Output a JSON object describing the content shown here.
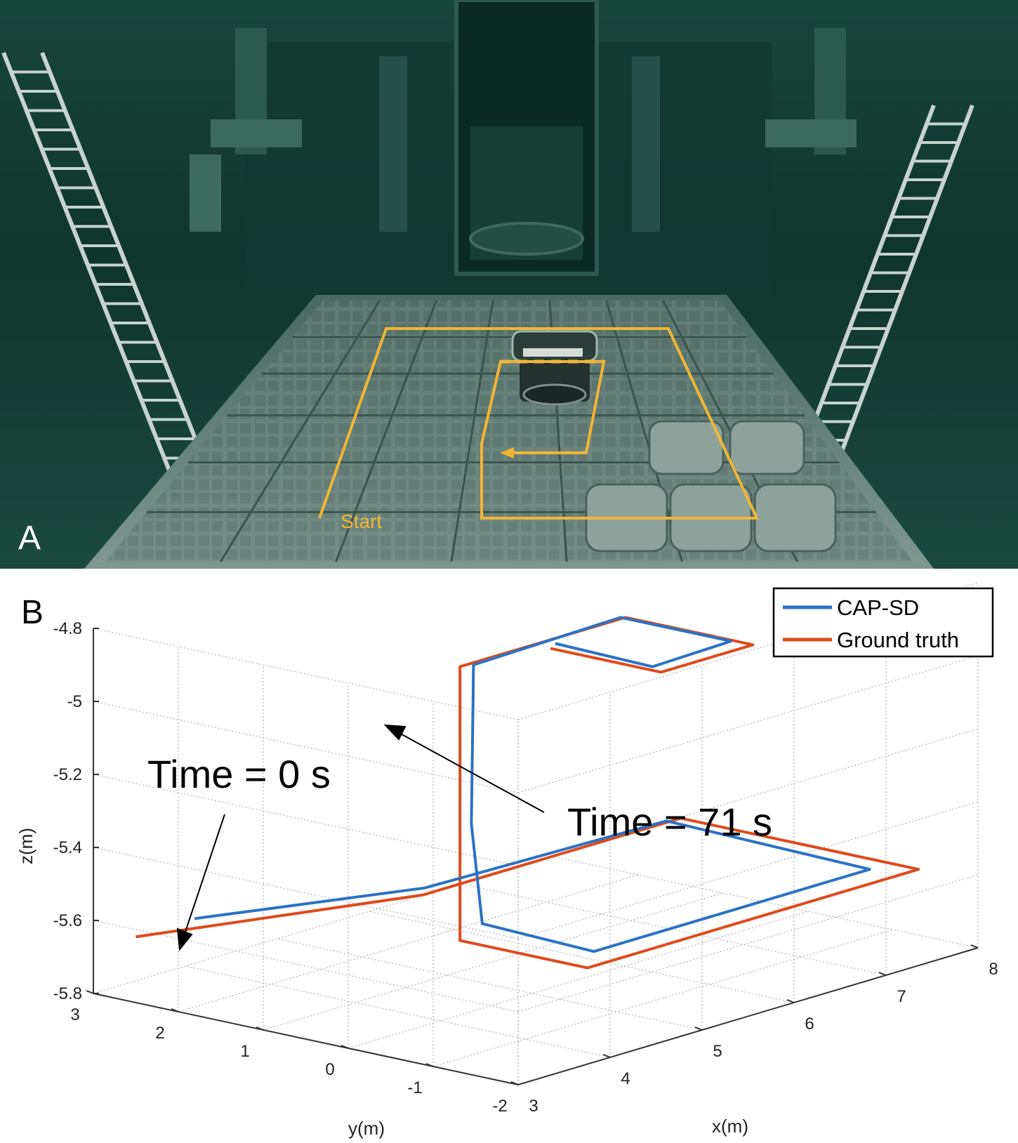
{
  "panel_a": {
    "label": "A",
    "start_label": "Start",
    "colors": {
      "water": "#1f5a4a",
      "water_dark": "#0d2e27",
      "path": "#f2b534",
      "tile": "#6f8a83"
    },
    "icons": [
      "ladder-icon",
      "robot-icon",
      "camera-scene"
    ]
  },
  "panel_b": {
    "label": "B",
    "annotations": {
      "start": "Time = 0 s",
      "end": "Time = 71 s"
    },
    "legend": [
      {
        "name": "CAP-SD",
        "color": "#2b72c5"
      },
      {
        "name": "Ground truth",
        "color": "#de4a1c"
      }
    ]
  },
  "chart_data": {
    "type": "line",
    "subtype": "3d",
    "xlabel": "x(m)",
    "ylabel": "y(m)",
    "zlabel": "z(m)",
    "xlim": [
      3,
      8
    ],
    "ylim": [
      -2,
      3
    ],
    "zlim": [
      -5.8,
      -4.8
    ],
    "xticks": [
      "3",
      "4",
      "5",
      "6",
      "7",
      "8"
    ],
    "yticks": [
      "-2",
      "-1",
      "0",
      "1",
      "2",
      "3"
    ],
    "zticks": [
      "-4.8",
      "-5",
      "-5.2",
      "-5.4",
      "-5.6",
      "-5.8"
    ],
    "grid": true,
    "legend_position": "top-right",
    "series": [
      {
        "name": "Ground truth",
        "color": "#de4a1c",
        "points": [
          [
            3.0,
            2.5,
            -5.62
          ],
          [
            5.2,
            1.5,
            -5.62
          ],
          [
            8.0,
            1.5,
            -5.62
          ],
          [
            8.0,
            -1.3,
            -5.62
          ],
          [
            4.4,
            -1.3,
            -5.62
          ],
          [
            4.4,
            0.2,
            -5.62
          ],
          [
            4.4,
            0.2,
            -4.87
          ],
          [
            6.2,
            0.2,
            -4.87
          ],
          [
            6.2,
            -1.3,
            -4.87
          ],
          [
            5.2,
            -1.3,
            -4.87
          ],
          [
            5.2,
            0.0,
            -4.87
          ]
        ]
      },
      {
        "name": "CAP-SD",
        "color": "#2b72c5",
        "points": [
          [
            3.5,
            2.35,
            -5.6
          ],
          [
            5.2,
            1.48,
            -5.6
          ],
          [
            7.8,
            1.45,
            -5.61
          ],
          [
            7.7,
            -1.05,
            -5.61
          ],
          [
            4.7,
            -1.05,
            -5.61
          ],
          [
            4.55,
            0.1,
            -5.58
          ],
          [
            4.45,
            0.12,
            -5.3
          ],
          [
            4.45,
            0.1,
            -4.95
          ],
          [
            4.5,
            0.15,
            -4.87
          ],
          [
            6.1,
            0.15,
            -4.86
          ],
          [
            6.1,
            -1.15,
            -4.86
          ],
          [
            5.2,
            -1.2,
            -4.86
          ],
          [
            5.25,
            0.0,
            -4.86
          ]
        ]
      }
    ]
  }
}
